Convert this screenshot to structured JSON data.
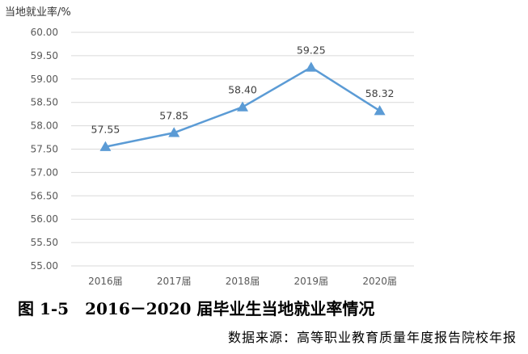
{
  "chart_data": {
    "type": "line",
    "title": "",
    "xlabel": "",
    "ylabel": "当地就业率/%",
    "categories": [
      "2016届",
      "2017届",
      "2018届",
      "2019届",
      "2020届"
    ],
    "series": [
      {
        "values": [
          57.55,
          57.85,
          58.4,
          59.25,
          58.32
        ]
      }
    ],
    "data_labels": [
      "57.55",
      "57.85",
      "58.40",
      "59.25",
      "58.32"
    ],
    "ylim": [
      55.0,
      60.0
    ],
    "yticks": [
      "55.00",
      "55.50",
      "56.00",
      "56.50",
      "57.00",
      "57.50",
      "58.00",
      "58.50",
      "59.00",
      "59.50",
      "60.00"
    ],
    "grid": true,
    "legend": "none",
    "line_color": "#5b9bd5",
    "marker": "triangle"
  },
  "caption": "图 1-5　2016－2020 届毕业生当地就业率情况",
  "source": "数据来源：高等职业教育质量年度报告院校年报"
}
